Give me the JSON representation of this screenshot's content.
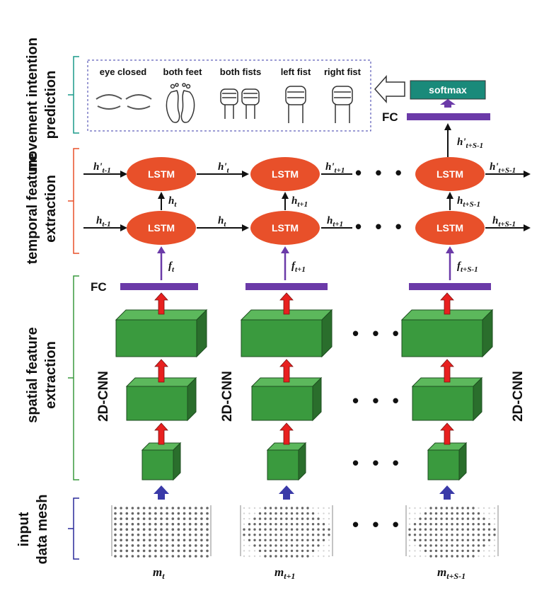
{
  "sections": {
    "movement": [
      "movement intention",
      "prediction"
    ],
    "temporal": [
      "temporal feature",
      "extraction"
    ],
    "spatial": [
      "spatial feature",
      "extraction"
    ],
    "input": [
      "input",
      "data mesh"
    ]
  },
  "prediction": {
    "classes": [
      "eye closed",
      "both feet",
      "both fists",
      "left fist",
      "right fist"
    ],
    "softmax": "softmax",
    "fc": "FC"
  },
  "lstm": {
    "label": "LSTM",
    "top_row": [
      "h'",
      "h'",
      "h'",
      "h'",
      "h'"
    ],
    "top_subs": [
      "t-1",
      "t",
      "t+1",
      "t+S-1",
      "t+S-1"
    ],
    "bottom_row": [
      "h",
      "h",
      "h",
      "h",
      "h"
    ],
    "bottom_subs": [
      "t-1",
      "t",
      "t+1",
      "t+S-1",
      "t+S-1"
    ],
    "vertical_subs": [
      "t",
      "t+1",
      "t+S-1"
    ],
    "f_subs": [
      "t",
      "t+1",
      "t+S-1"
    ],
    "f_label": "f",
    "h_label": "h",
    "hp_label": "h'",
    "top_out_sub": "t+S-1"
  },
  "cnn": {
    "fc": "FC",
    "label": "2D-CNN"
  },
  "inputs": {
    "m_label": "m",
    "subs": [
      "t",
      "t+1",
      "t+S-1"
    ]
  },
  "colors": {
    "lstm": "#e8502a",
    "fc_bar": "#6b3aa8",
    "cnn_front": "#3a9a3e",
    "cnn_top": "#5cb85c",
    "cnn_side": "#2a6e2c",
    "red_arrow": "#e8201f",
    "blue_arrow": "#3a3aa8",
    "softmax": "#1a8a7a",
    "bracket_movement": "#1a9a8a",
    "bracket_temporal": "#e8502a",
    "bracket_spatial": "#3a9a3e",
    "bracket_input": "#2a2a9a"
  },
  "ellipsis": "• • •"
}
